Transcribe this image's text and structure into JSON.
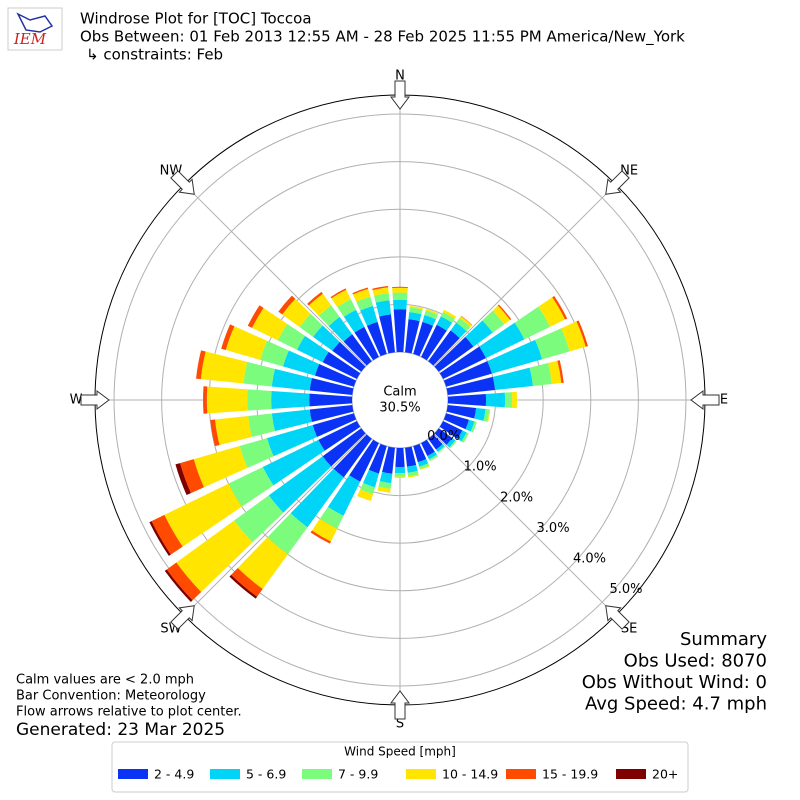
{
  "logo": "IEM",
  "chart_data": {
    "type": "windrose",
    "title": "Windrose Plot for [TOC] Toccoa",
    "subtitle": "Obs Between: 01 Feb 2013 12:55 AM - 28 Feb 2025 11:55 PM America/New_York",
    "constraints": "↳ constraints: Feb",
    "calm": {
      "label": "Calm",
      "value": 30.5,
      "value_label": "30.5%"
    },
    "xlim": [
      0,
      360
    ],
    "xticks": [
      {
        "value": 0,
        "label": "N"
      },
      {
        "value": 45,
        "label": "NE"
      },
      {
        "value": 90,
        "label": "E"
      },
      {
        "value": 135,
        "label": "SE"
      },
      {
        "value": 180,
        "label": "S"
      },
      {
        "value": 225,
        "label": "SW"
      },
      {
        "value": 270,
        "label": "W"
      },
      {
        "value": 315,
        "label": "NW"
      }
    ],
    "ylim": [
      0,
      5.4
    ],
    "yticks": [
      {
        "value": 0,
        "label": "0.0%"
      },
      {
        "value": 1,
        "label": "1.0%"
      },
      {
        "value": 2,
        "label": "2.0%"
      },
      {
        "value": 3,
        "label": "3.0%"
      },
      {
        "value": 4,
        "label": "4.0%"
      },
      {
        "value": 5,
        "label": "5.0%"
      }
    ],
    "grid": true,
    "directions": [
      0,
      10,
      20,
      30,
      40,
      50,
      60,
      70,
      80,
      90,
      100,
      110,
      120,
      130,
      140,
      150,
      160,
      170,
      180,
      190,
      200,
      210,
      220,
      230,
      240,
      250,
      260,
      270,
      280,
      290,
      300,
      310,
      320,
      330,
      340,
      350
    ],
    "legend_title": "Wind Speed [mph]",
    "series": [
      {
        "name": "2 - 4.9",
        "color": "#0a33f5",
        "values": [
          0.9,
          0.7,
          0.7,
          0.75,
          0.8,
          0.9,
          1.0,
          1.0,
          1.0,
          0.8,
          0.6,
          0.5,
          0.45,
          0.35,
          0.28,
          0.3,
          0.35,
          0.4,
          0.4,
          0.55,
          0.6,
          0.9,
          1.0,
          1.0,
          0.9,
          0.9,
          0.9,
          0.9,
          0.9,
          0.85,
          0.8,
          0.75,
          0.7,
          0.7,
          0.7,
          0.8
        ]
      },
      {
        "name": "5 - 6.9",
        "color": "#00d5f7",
        "values": [
          0.2,
          0.15,
          0.15,
          0.2,
          0.2,
          0.5,
          0.9,
          1.1,
          0.8,
          0.4,
          0.2,
          0.12,
          0.1,
          0.08,
          0.06,
          0.08,
          0.1,
          0.13,
          0.13,
          0.2,
          0.3,
          0.8,
          1.3,
          1.4,
          1.3,
          1.0,
          0.8,
          0.8,
          0.8,
          0.7,
          0.6,
          0.5,
          0.45,
          0.4,
          0.35,
          0.3
        ]
      },
      {
        "name": "7 - 9.9",
        "color": "#7cfc7c",
        "values": [
          0.15,
          0.1,
          0.1,
          0.1,
          0.12,
          0.3,
          0.6,
          0.6,
          0.4,
          0.15,
          0.08,
          0.05,
          0.05,
          0.03,
          0.02,
          0.04,
          0.05,
          0.07,
          0.07,
          0.12,
          0.15,
          0.3,
          0.7,
          0.9,
          0.8,
          0.6,
          0.5,
          0.5,
          0.6,
          0.5,
          0.45,
          0.35,
          0.3,
          0.25,
          0.2,
          0.15
        ]
      },
      {
        "name": "10 - 14.9",
        "color": "#ffe500",
        "values": [
          0.1,
          0.03,
          0.03,
          0.05,
          0.05,
          0.15,
          0.35,
          0.35,
          0.2,
          0.1,
          0.02,
          0,
          0,
          0,
          0,
          0,
          0.02,
          0.03,
          0.03,
          0.08,
          0.15,
          0.3,
          0.9,
          1.5,
          1.5,
          1.0,
          0.7,
          0.85,
          0.9,
          0.75,
          0.6,
          0.45,
          0.3,
          0.22,
          0.17,
          0.12
        ]
      },
      {
        "name": "15 - 19.9",
        "color": "#ff4a00",
        "values": [
          0.02,
          0,
          0,
          0,
          0.01,
          0.03,
          0.05,
          0.05,
          0.05,
          0,
          0,
          0,
          0,
          0,
          0,
          0,
          0,
          0,
          0,
          0,
          0,
          0.05,
          0.2,
          0.25,
          0.3,
          0.3,
          0.1,
          0.08,
          0.1,
          0.1,
          0.1,
          0.1,
          0.05,
          0.03,
          0.03,
          0.03
        ]
      },
      {
        "name": "20+",
        "color": "#800000",
        "values": [
          0,
          0,
          0,
          0,
          0,
          0,
          0,
          0,
          0,
          0,
          0,
          0,
          0,
          0,
          0,
          0,
          0,
          0,
          0,
          0,
          0,
          0,
          0.05,
          0.05,
          0.05,
          0.1,
          0,
          0,
          0,
          0,
          0,
          0,
          0,
          0,
          0,
          0
        ]
      }
    ],
    "notes": [
      "Calm values are < 2.0 mph",
      "Bar Convention: Meteorology",
      "Flow arrows relative to plot center."
    ],
    "generated": "Generated: 23 Mar 2025",
    "summary": [
      "Summary",
      "Obs Used: 8070",
      "Obs Without Wind: 0",
      "Avg Speed: 4.7 mph"
    ]
  }
}
